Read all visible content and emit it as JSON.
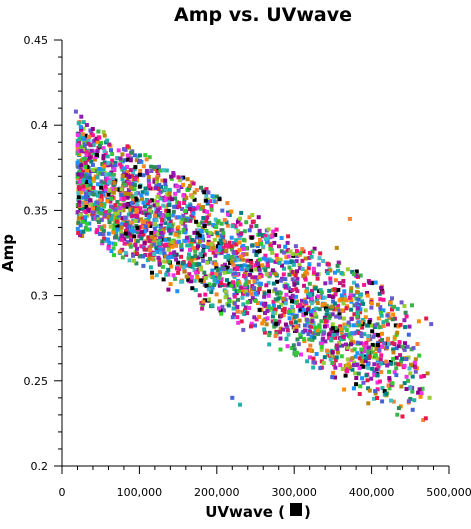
{
  "chart_data": {
    "type": "scatter",
    "title": "Amp vs. UVwave",
    "xlabel": "UVwave (",
    "xlabel_suffix": ")",
    "ylabel": "Amp",
    "xlim": [
      0,
      500000
    ],
    "ylim": [
      0.2,
      0.45
    ],
    "x_ticks": [
      0,
      100000,
      200000,
      300000,
      400000,
      500000
    ],
    "x_tick_labels": [
      "0",
      "100,000",
      "200,000",
      "300,000",
      "400,000",
      "500,000"
    ],
    "y_ticks": [
      0.2,
      0.25,
      0.3,
      0.35,
      0.4,
      0.45
    ],
    "y_tick_labels": [
      "0.2",
      "0.25",
      "0.3",
      "0.35",
      "0.4",
      "0.45"
    ],
    "grid": false,
    "legend": "none",
    "marker": "square",
    "colors": [
      "#e6194b",
      "#3cb44b",
      "#4363d8",
      "#f58231",
      "#911eb4",
      "#46bdc6",
      "#f032e6",
      "#9acd32",
      "#000000",
      "#008080",
      "#b8860b",
      "#1e90ff",
      "#ff1493",
      "#32cd32",
      "#8b008b",
      "#20b2aa",
      "#ff8c00",
      "#6a5acd",
      "#c71585",
      "#2e8b57"
    ],
    "trend": {
      "x_start": 20000,
      "y_start_top": 0.405,
      "y_start_bottom": 0.35,
      "x_end": 480000,
      "y_end_top": 0.29,
      "y_end_bottom": 0.23
    },
    "outliers": [
      {
        "x": 470000,
        "y": 0.228
      },
      {
        "x": 475000,
        "y": 0.24
      },
      {
        "x": 462000,
        "y": 0.245
      },
      {
        "x": 440000,
        "y": 0.27
      },
      {
        "x": 380000,
        "y": 0.248
      },
      {
        "x": 230000,
        "y": 0.236
      },
      {
        "x": 220000,
        "y": 0.24
      },
      {
        "x": 425000,
        "y": 0.26
      },
      {
        "x": 395000,
        "y": 0.3
      },
      {
        "x": 372000,
        "y": 0.345
      },
      {
        "x": 355000,
        "y": 0.328
      },
      {
        "x": 18000,
        "y": 0.408
      },
      {
        "x": 25000,
        "y": 0.405
      },
      {
        "x": 20000,
        "y": 0.378
      },
      {
        "x": 22000,
        "y": 0.353
      }
    ],
    "point_count": 2600
  }
}
